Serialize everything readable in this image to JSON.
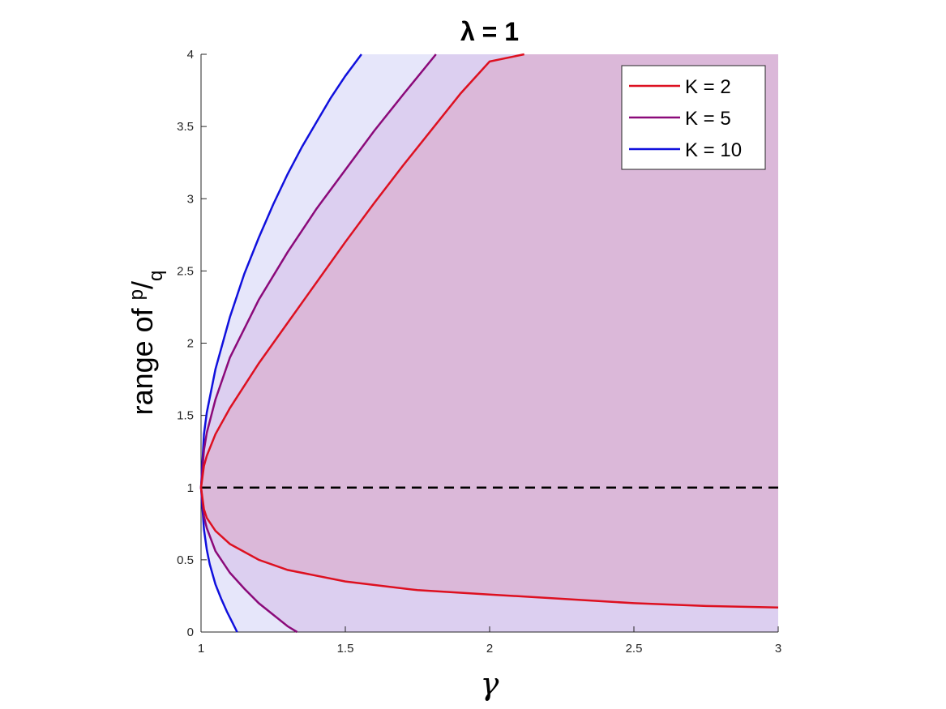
{
  "chart_data": {
    "type": "area",
    "title": "λ = 1",
    "xlabel": "γ",
    "ylabel": "range of p/q",
    "ylabel_parts": {
      "prefix": "range of ",
      "numerator": "p",
      "slash": "/",
      "denominator": "q"
    },
    "xlim": [
      1,
      3
    ],
    "ylim": [
      0,
      4
    ],
    "xticks": [
      1,
      1.5,
      2,
      2.5,
      3
    ],
    "xtick_labels": [
      "1",
      "1.5",
      "2",
      "2.5",
      "3"
    ],
    "yticks": [
      0,
      0.5,
      1,
      1.5,
      2,
      2.5,
      3,
      3.5,
      4
    ],
    "ytick_labels": [
      "0",
      "0.5",
      "1",
      "1.5",
      "2",
      "2.5",
      "3",
      "3.5",
      "4"
    ],
    "grid": false,
    "legend_position": "top-right",
    "reference_line": {
      "y": 1,
      "style": "dashed",
      "color": "#000000"
    },
    "series": [
      {
        "name": "K = 10",
        "color": "#1010dd",
        "fill": "#e6e6fa",
        "upper": {
          "x": [
            1.0,
            1.01,
            1.02,
            1.05,
            1.1,
            1.15,
            1.2,
            1.25,
            1.3,
            1.35,
            1.4,
            1.45,
            1.5,
            1.556
          ],
          "y": [
            1.0,
            1.37,
            1.52,
            1.82,
            2.18,
            2.48,
            2.73,
            2.96,
            3.17,
            3.36,
            3.53,
            3.7,
            3.85,
            4.0
          ]
        },
        "lower": {
          "x": [
            1.0,
            1.01,
            1.02,
            1.03,
            1.05,
            1.07,
            1.09,
            1.11,
            1.125
          ],
          "y": [
            1.0,
            0.71,
            0.57,
            0.47,
            0.33,
            0.23,
            0.14,
            0.06,
            0.0
          ]
        }
      },
      {
        "name": "K = 5",
        "color": "#8b0a7a",
        "fill": "#dccff0",
        "upper": {
          "x": [
            1.0,
            1.01,
            1.02,
            1.05,
            1.1,
            1.2,
            1.3,
            1.4,
            1.5,
            1.6,
            1.7,
            1.814
          ],
          "y": [
            1.0,
            1.26,
            1.38,
            1.61,
            1.9,
            2.3,
            2.63,
            2.93,
            3.2,
            3.47,
            3.72,
            4.0
          ]
        },
        "lower": {
          "x": [
            1.0,
            1.01,
            1.02,
            1.05,
            1.1,
            1.15,
            1.2,
            1.25,
            1.3,
            1.333
          ],
          "y": [
            1.0,
            0.8,
            0.72,
            0.56,
            0.41,
            0.3,
            0.2,
            0.12,
            0.04,
            0.0
          ]
        }
      },
      {
        "name": "K = 2",
        "color": "#dd1020",
        "fill": "#dbb8d9",
        "upper": {
          "x": [
            1.0,
            1.01,
            1.02,
            1.05,
            1.1,
            1.2,
            1.3,
            1.4,
            1.5,
            1.6,
            1.7,
            1.8,
            1.9,
            2.0,
            2.12
          ],
          "y": [
            1.0,
            1.15,
            1.22,
            1.37,
            1.55,
            1.86,
            2.14,
            2.42,
            2.7,
            2.97,
            3.23,
            3.48,
            3.73,
            3.95,
            4.0
          ]
        },
        "lower": {
          "x": [
            1.0,
            1.01,
            1.02,
            1.05,
            1.1,
            1.2,
            1.3,
            1.5,
            1.75,
            2.0,
            2.25,
            2.5,
            2.75,
            3.0
          ],
          "y": [
            1.0,
            0.85,
            0.79,
            0.7,
            0.61,
            0.5,
            0.43,
            0.35,
            0.29,
            0.26,
            0.23,
            0.2,
            0.18,
            0.17
          ]
        }
      }
    ]
  }
}
